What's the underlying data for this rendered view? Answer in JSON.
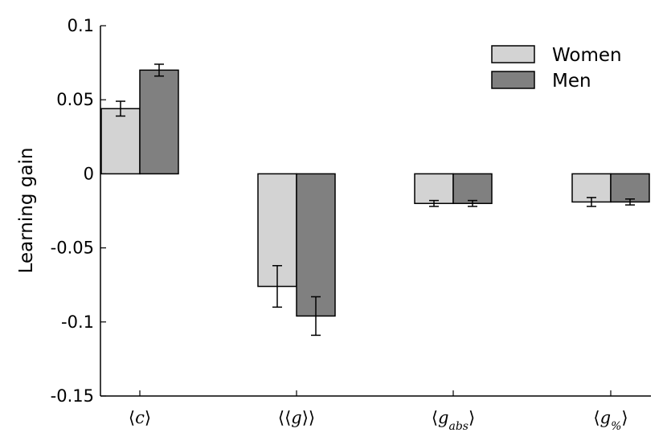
{
  "chart_data": {
    "type": "bar",
    "categories": [
      "⟨c⟩",
      "⟨⟨g⟩⟩",
      "⟨g_abs⟩",
      "⟨g_%⟩"
    ],
    "category_parts": [
      {
        "base": "c",
        "sub": "",
        "outer": 1
      },
      {
        "base": "g",
        "sub": "",
        "outer": 2
      },
      {
        "base": "g",
        "sub": "abs",
        "outer": 1
      },
      {
        "base": "g",
        "sub": "%",
        "outer": 1
      }
    ],
    "series": [
      {
        "name": "Women",
        "color": "#d3d3d3",
        "values": [
          0.044,
          -0.076,
          -0.02,
          -0.019
        ],
        "errors": [
          0.005,
          0.014,
          0.002,
          0.003
        ]
      },
      {
        "name": "Men",
        "color": "#808080",
        "values": [
          0.07,
          -0.096,
          -0.02,
          -0.019
        ],
        "errors": [
          0.004,
          0.013,
          0.002,
          0.002
        ]
      }
    ],
    "xlabel": "",
    "ylabel": "Learning gain",
    "ylim": [
      -0.15,
      0.1
    ],
    "yticks": [
      0.1,
      0.05,
      0,
      -0.05,
      -0.1,
      -0.15
    ],
    "ytick_labels": [
      "0.1",
      "0.05",
      "0",
      "-0.05",
      "-0.1",
      "-0.15"
    ],
    "legend_position": "top-right",
    "grid": false
  }
}
